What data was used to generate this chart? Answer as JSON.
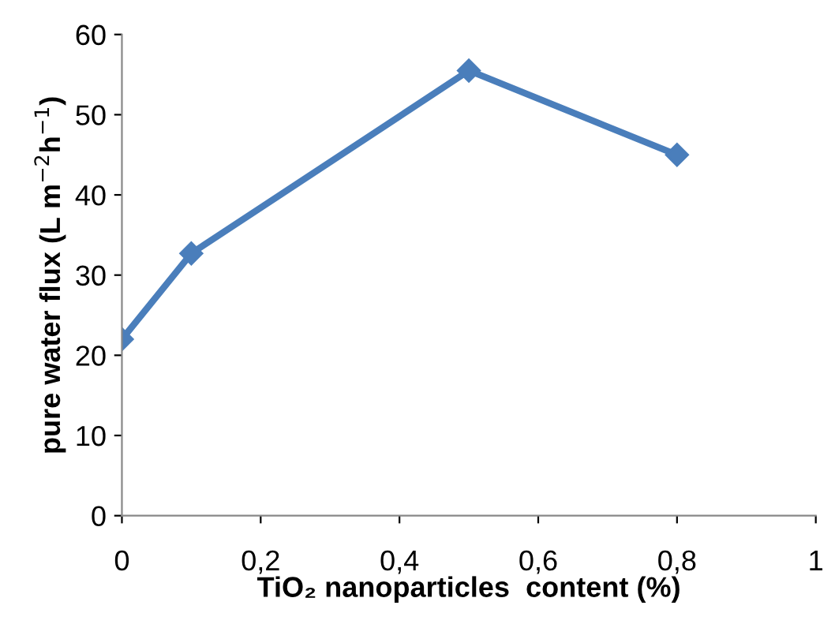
{
  "chart_data": {
    "type": "line",
    "xlabel": "TiO₂ nanoparticles  content (%)",
    "ylabel": "pure water flux (L m$^{−2}$h$^{−1}$)",
    "x": [
      0,
      0.1,
      0.5,
      0.8
    ],
    "series": [
      {
        "color": "#4a7ebb",
        "values": [
          22,
          32.7,
          55.5,
          45
        ]
      }
    ],
    "xlim": [
      0,
      1
    ],
    "xticks": [
      0,
      {
        "value": 0.2,
        "label": "0,2"
      },
      {
        "value": 0.4,
        "label": "0,4"
      },
      {
        "value": 0.6,
        "label": "0,6"
      },
      {
        "value": 0.8,
        "label": "0,8"
      },
      1
    ],
    "ylim": [
      0,
      60
    ],
    "yticks": [
      0,
      10,
      20,
      30,
      40,
      50,
      60
    ],
    "marker": "diamond",
    "line_style": "solid",
    "grid": false
  }
}
